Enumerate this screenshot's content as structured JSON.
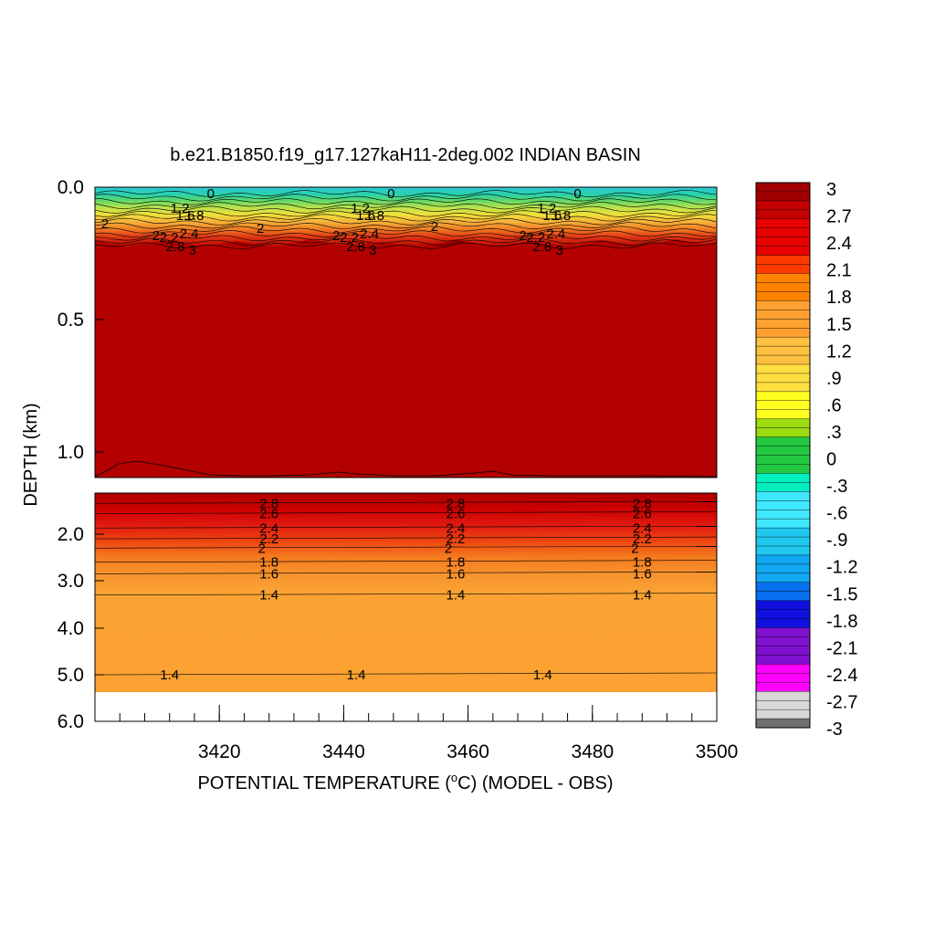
{
  "chart_data": {
    "type": "heatmap",
    "title": "b.e21.B1850.f19_g17.127kaH11-2deg.002 INDIAN BASIN",
    "xlabel": "POTENTIAL TEMPERATURE (",
    "xlabel_unit": "o",
    "xlabel_suffix": "C) (MODEL - OBS)",
    "ylabel": "DEPTH (km)",
    "x_range": [
      3400,
      3500
    ],
    "x_ticks": [
      "3420",
      "3440",
      "3460",
      "3480",
      "3500"
    ],
    "upper_panel": {
      "depth_range_km": [
        0.0,
        1.1
      ],
      "y_ticks": [
        "0.0",
        "0.5",
        "1.0"
      ],
      "description_values": {
        "surface_layer_range": [
          -0.6,
          2.0
        ],
        "thermocline_levels": [
          1.2,
          1.6,
          1.8,
          2.0,
          2.2,
          2.4,
          2.6,
          2.8,
          3.0
        ],
        "below_thermocline_value": 3.0
      },
      "contour_labels": [
        "1.2",
        "1.6",
        "1.8",
        "2",
        "2.2",
        "2.4",
        "2.6",
        "2.8",
        "3",
        "0"
      ]
    },
    "lower_panel": {
      "depth_range_km": [
        1.0,
        6.0
      ],
      "y_ticks": [
        "2.0",
        "3.0",
        "4.0",
        "5.0",
        "6.0"
      ],
      "contour_levels": [
        {
          "value": 2.8,
          "label": "2.8",
          "depth_km": 1.25
        },
        {
          "value": 2.6,
          "label": "2.6",
          "depth_km": 1.5
        },
        {
          "value": 2.4,
          "label": "2.4",
          "depth_km": 1.85
        },
        {
          "value": 2.2,
          "label": "2.2",
          "depth_km": 2.1
        },
        {
          "value": 2.0,
          "label": "2",
          "depth_km": 2.3
        },
        {
          "value": 1.8,
          "label": "1.8",
          "depth_km": 2.6
        },
        {
          "value": 1.6,
          "label": "1.6",
          "depth_km": 2.85
        },
        {
          "value": 1.4,
          "label": "1.4",
          "depth_km": 3.3
        },
        {
          "value": 1.4,
          "label": "1.4",
          "depth_km": 5.0
        }
      ],
      "label_x_positions": [
        3428,
        3458,
        3488
      ],
      "deep_label_x_positions": [
        3412,
        3442,
        3472
      ],
      "bottom_depth_km": 5.4
    },
    "colorbar": {
      "min": -3,
      "max": 3,
      "labels": [
        "3",
        "2.7",
        "2.4",
        "2.1",
        "1.8",
        "1.5",
        "1.2",
        ".9",
        ".6",
        ".3",
        "0",
        "-.3",
        "-.6",
        "-.9",
        "-1.2",
        "-1.5",
        "-1.8",
        "-2.1",
        "-2.4",
        "-2.7",
        "-3"
      ]
    },
    "grid": false,
    "legend": "colorbar-right"
  }
}
